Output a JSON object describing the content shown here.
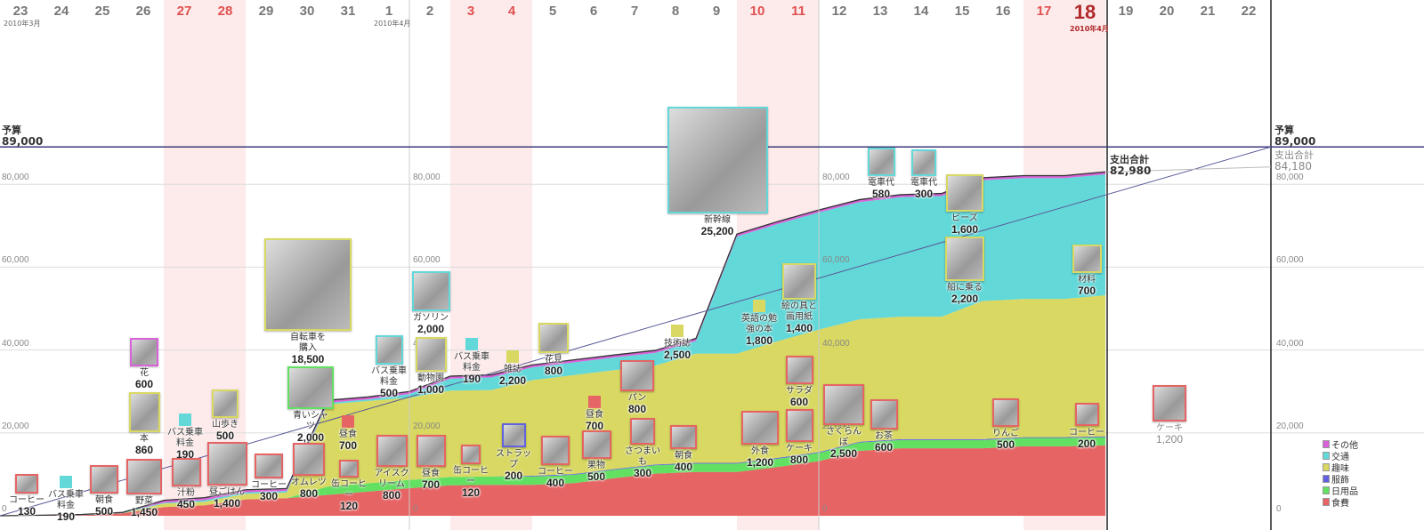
{
  "header": {
    "days": [
      "23",
      "24",
      "25",
      "26",
      "27",
      "28",
      "29",
      "30",
      "31",
      "1",
      "2",
      "3",
      "4",
      "5",
      "6",
      "7",
      "8",
      "9",
      "10",
      "11",
      "12",
      "13",
      "14",
      "15",
      "16",
      "17",
      "18",
      "19",
      "20",
      "21",
      "22"
    ],
    "weekend_days": [
      "27",
      "28",
      "3",
      "4",
      "10",
      "11",
      "17",
      "18"
    ],
    "today": "18",
    "month_labels": [
      {
        "day": "23",
        "text": "2010年3月"
      },
      {
        "day": "1",
        "text": "2010年4月"
      },
      {
        "day": "18",
        "text": "2010年4月"
      }
    ]
  },
  "budget": {
    "label": "予算",
    "value": "89,000",
    "right_label": "予算",
    "right_value": "89,000"
  },
  "total": {
    "label": "支出合計",
    "value": "82,980",
    "projected_label": "支出合計",
    "projected_value": "84,180"
  },
  "colors": {
    "その他": "#d862d8",
    "交通": "#62d8d8",
    "趣味": "#d8d862",
    "服飾": "#6262e0",
    "日用品": "#62e062",
    "食費": "#e66464"
  },
  "legend": [
    "その他",
    "交通",
    "趣味",
    "服飾",
    "日用品",
    "食費"
  ],
  "chart_data": {
    "type": "area",
    "stacked": true,
    "x": [
      "3/23",
      "3/24",
      "3/25",
      "3/26",
      "3/27",
      "3/28",
      "3/29",
      "3/30",
      "3/31",
      "4/1",
      "4/2",
      "4/3",
      "4/4",
      "4/5",
      "4/6",
      "4/7",
      "4/8",
      "4/9",
      "4/10",
      "4/11",
      "4/12",
      "4/13",
      "4/14",
      "4/15",
      "4/16",
      "4/17",
      "4/18"
    ],
    "y_ticks": [
      "0",
      "20,000",
      "40,000",
      "60,000",
      "80,000"
    ],
    "ylim": [
      0,
      89000
    ],
    "budget": 89000,
    "projected_total": 84180,
    "grid": true,
    "legend_position": "bottom-right",
    "series": [
      {
        "name": "食費",
        "values": [
          130,
          130,
          630,
          2080,
          2530,
          3930,
          4230,
          5030,
          5850,
          6650,
          7350,
          7470,
          7470,
          7870,
          9070,
          10170,
          10570,
          10570,
          11770,
          13170,
          15670,
          16270,
          16270,
          16270,
          16770,
          16770,
          16970
        ]
      },
      {
        "name": "日用品",
        "values": [
          0,
          0,
          0,
          0,
          0,
          0,
          0,
          2000,
          2000,
          2000,
          2000,
          2000,
          2000,
          2000,
          2000,
          2000,
          2000,
          2000,
          2000,
          2000,
          2000,
          2000,
          2000,
          2000,
          2000,
          2000,
          2000
        ]
      },
      {
        "name": "服飾",
        "values": [
          0,
          0,
          0,
          0,
          0,
          0,
          0,
          0,
          0,
          0,
          0,
          0,
          200,
          200,
          200,
          200,
          200,
          200,
          200,
          200,
          200,
          200,
          200,
          200,
          200,
          200,
          200
        ]
      },
      {
        "name": "趣味",
        "values": [
          0,
          0,
          0,
          860,
          860,
          1360,
          1360,
          19860,
          19860,
          19860,
          20860,
          20860,
          23060,
          23860,
          23860,
          23860,
          26360,
          26360,
          28160,
          29560,
          29560,
          29560,
          29560,
          33360,
          33360,
          33360,
          34060
        ]
      },
      {
        "name": "交通",
        "values": [
          0,
          190,
          190,
          190,
          380,
          380,
          380,
          380,
          380,
          880,
          2880,
          3070,
          3070,
          3070,
          3070,
          3070,
          3070,
          28270,
          28270,
          28270,
          28270,
          28850,
          29150,
          29150,
          29150,
          29150,
          29150
        ]
      },
      {
        "name": "その他",
        "values": [
          0,
          0,
          0,
          600,
          600,
          600,
          600,
          600,
          600,
          600,
          600,
          600,
          600,
          600,
          600,
          600,
          600,
          600,
          600,
          600,
          600,
          600,
          600,
          600,
          600,
          600,
          600
        ]
      }
    ]
  },
  "items": [
    {
      "day": "23",
      "cat": "食費",
      "label": "コーヒー",
      "amount": "130"
    },
    {
      "day": "24",
      "cat": "交通",
      "label": "バス乗車料金",
      "amount": "190"
    },
    {
      "day": "25",
      "cat": "食費",
      "label": "朝食",
      "amount": "500"
    },
    {
      "day": "26",
      "cat": "食費",
      "label": "野菜",
      "amount": "1,450"
    },
    {
      "day": "26",
      "cat": "趣味",
      "label": "本",
      "amount": "860"
    },
    {
      "day": "26",
      "cat": "その他",
      "label": "花",
      "amount": "600"
    },
    {
      "day": "27",
      "cat": "交通",
      "label": "バス乗車料金",
      "amount": "190"
    },
    {
      "day": "27",
      "cat": "食費",
      "label": "汁粉",
      "amount": "450"
    },
    {
      "day": "28",
      "cat": "趣味",
      "label": "山歩き",
      "amount": "500"
    },
    {
      "day": "28",
      "cat": "食費",
      "label": "昼ごはん",
      "amount": "1,400"
    },
    {
      "day": "29",
      "cat": "食費",
      "label": "コーヒー",
      "amount": "300"
    },
    {
      "day": "30",
      "cat": "趣味",
      "label": "自転車を購入",
      "amount": "18,500"
    },
    {
      "day": "30",
      "cat": "日用品",
      "label": "青いシャツ",
      "amount": "2,000"
    },
    {
      "day": "30",
      "cat": "食費",
      "label": "オムレツ",
      "amount": "800"
    },
    {
      "day": "31",
      "cat": "食費",
      "label": "昼食",
      "amount": "700"
    },
    {
      "day": "31",
      "cat": "食費",
      "label": "缶コーヒー",
      "amount": "120"
    },
    {
      "day": "1",
      "cat": "交通",
      "label": "バス乗車料金",
      "amount": "500"
    },
    {
      "day": "1",
      "cat": "食費",
      "label": "アイスクリーム",
      "amount": "800"
    },
    {
      "day": "2",
      "cat": "交通",
      "label": "ガソリン",
      "amount": "2,000"
    },
    {
      "day": "2",
      "cat": "趣味",
      "label": "動物園",
      "amount": "1,000"
    },
    {
      "day": "2",
      "cat": "食費",
      "label": "昼食",
      "amount": "700"
    },
    {
      "day": "3",
      "cat": "交通",
      "label": "バス乗車料金",
      "amount": "190"
    },
    {
      "day": "3",
      "cat": "食費",
      "label": "缶コーヒー",
      "amount": "120"
    },
    {
      "day": "4",
      "cat": "趣味",
      "label": "雑誌",
      "amount": "2,200"
    },
    {
      "day": "4",
      "cat": "服飾",
      "label": "ストラップ",
      "amount": "200"
    },
    {
      "day": "5",
      "cat": "趣味",
      "label": "花見",
      "amount": "800"
    },
    {
      "day": "5",
      "cat": "食費",
      "label": "コーヒー",
      "amount": "400"
    },
    {
      "day": "6",
      "cat": "食費",
      "label": "昼食",
      "amount": "700"
    },
    {
      "day": "6",
      "cat": "食費",
      "label": "果物",
      "amount": "500"
    },
    {
      "day": "7",
      "cat": "食費",
      "label": "パン",
      "amount": "800"
    },
    {
      "day": "7",
      "cat": "食費",
      "label": "さつまいも",
      "amount": "300"
    },
    {
      "day": "8",
      "cat": "食費",
      "label": "朝食",
      "amount": "400"
    },
    {
      "day": "8",
      "cat": "趣味",
      "label": "技術誌",
      "amount": "2,500"
    },
    {
      "day": "9",
      "cat": "交通",
      "label": "新幹線",
      "amount": "25,200"
    },
    {
      "day": "10",
      "cat": "趣味",
      "label": "英語の勉強の本",
      "amount": "1,800"
    },
    {
      "day": "10",
      "cat": "食費",
      "label": "外食",
      "amount": "1,200"
    },
    {
      "day": "11",
      "cat": "趣味",
      "label": "絵の具と画用紙",
      "amount": "1,400"
    },
    {
      "day": "11",
      "cat": "食費",
      "label": "サラダ",
      "amount": "600"
    },
    {
      "day": "11",
      "cat": "食費",
      "label": "ケーキ",
      "amount": "800"
    },
    {
      "day": "12",
      "cat": "食費",
      "label": "さくらんぼ",
      "amount": "2,500"
    },
    {
      "day": "13",
      "cat": "交通",
      "label": "電車代",
      "amount": "580"
    },
    {
      "day": "13",
      "cat": "食費",
      "label": "お茶",
      "amount": "600"
    },
    {
      "day": "14",
      "cat": "交通",
      "label": "電車代",
      "amount": "300"
    },
    {
      "day": "15",
      "cat": "趣味",
      "label": "ビーズ",
      "amount": "1,600"
    },
    {
      "day": "15",
      "cat": "趣味",
      "label": "船に乗る",
      "amount": "2,200"
    },
    {
      "day": "16",
      "cat": "食費",
      "label": "りんご",
      "amount": "500"
    },
    {
      "day": "18",
      "cat": "趣味",
      "label": "材料",
      "amount": "700"
    },
    {
      "day": "18",
      "cat": "食費",
      "label": "コーヒー",
      "amount": "200"
    },
    {
      "day": "20",
      "cat": "食費",
      "label": "ケーキ",
      "amount": "1,200",
      "future": true
    }
  ]
}
